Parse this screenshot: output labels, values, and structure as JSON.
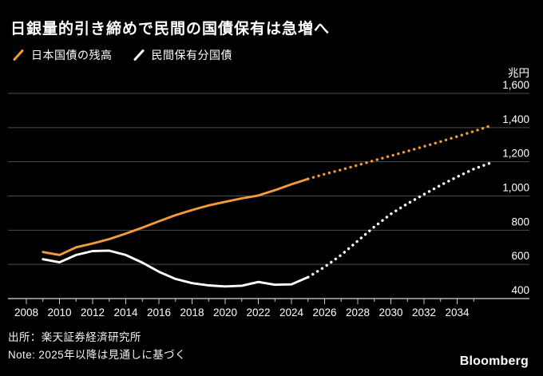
{
  "header": {
    "title": "日銀量的引き締めで民間の国債保有は急増へ"
  },
  "legend": {
    "items": [
      {
        "label": "日本国債の残高",
        "color": "#F39B38"
      },
      {
        "label": "民間保有分国債",
        "color": "#FFFFFF"
      }
    ]
  },
  "footer": {
    "source": "出所：楽天証券経済研究所",
    "note": "Note: 2025年以降は見通しに基づく",
    "brand": "Bloomberg"
  },
  "colors": {
    "background": "#000000",
    "grid": "#4D4D4D",
    "axis": "#D9D9D9",
    "tick": "#C8C8C8",
    "text": "#FFFFFF",
    "accent": "#F39B38"
  },
  "chart_data": {
    "type": "line",
    "unit_label": "兆円",
    "xlim": [
      2008,
      2036.4
    ],
    "ylim": [
      400,
      1600
    ],
    "grid": true,
    "legend_position": "top-left",
    "solid_until": 2025,
    "forecast_note": "2025年以降は見通し（点線部分）",
    "x": [
      2009,
      2010,
      2011,
      2012,
      2013,
      2014,
      2015,
      2016,
      2017,
      2018,
      2019,
      2020,
      2021,
      2022,
      2023,
      2024,
      2025,
      2026,
      2027,
      2028,
      2029,
      2030,
      2031,
      2032,
      2033,
      2034,
      2035,
      2036
    ],
    "x_major_ticks": [
      2008,
      2010,
      2012,
      2014,
      2016,
      2018,
      2020,
      2022,
      2024,
      2026,
      2028,
      2030,
      2032,
      2034
    ],
    "x_tick_labels": [
      "2008",
      "2010",
      "2012",
      "2014",
      "2016",
      "2018",
      "2020",
      "2022",
      "2024",
      "2026",
      "2028",
      "2030",
      "2032",
      "2034"
    ],
    "x_minor_ticks": [
      2009,
      2011,
      2013,
      2015,
      2017,
      2019,
      2021,
      2023,
      2025,
      2027,
      2029,
      2031,
      2033,
      2035
    ],
    "y_ticks": [
      {
        "value": 1600,
        "label": "1,600"
      },
      {
        "value": 1400,
        "label": "1,400"
      },
      {
        "value": 1200,
        "label": "1,200"
      },
      {
        "value": 1000,
        "label": "1,000"
      },
      {
        "value": 800,
        "label": "800"
      },
      {
        "value": 600,
        "label": "600"
      },
      {
        "value": 400,
        "label": "400"
      }
    ],
    "series": [
      {
        "name": "日本国債の残高",
        "color": "#F39B38",
        "values": [
          672,
          655,
          700,
          722,
          748,
          780,
          815,
          852,
          888,
          918,
          945,
          966,
          986,
          1003,
          1034,
          1068,
          1100,
          1128,
          1153,
          1180,
          1208,
          1235,
          1262,
          1290,
          1318,
          1348,
          1378,
          1410
        ]
      },
      {
        "name": "民間保有分国債",
        "color": "#FFFFFF",
        "values": [
          630,
          612,
          655,
          678,
          680,
          655,
          610,
          557,
          515,
          490,
          477,
          471,
          475,
          497,
          481,
          483,
          525,
          585,
          655,
          737,
          820,
          895,
          955,
          1010,
          1063,
          1112,
          1158,
          1193
        ]
      }
    ]
  }
}
